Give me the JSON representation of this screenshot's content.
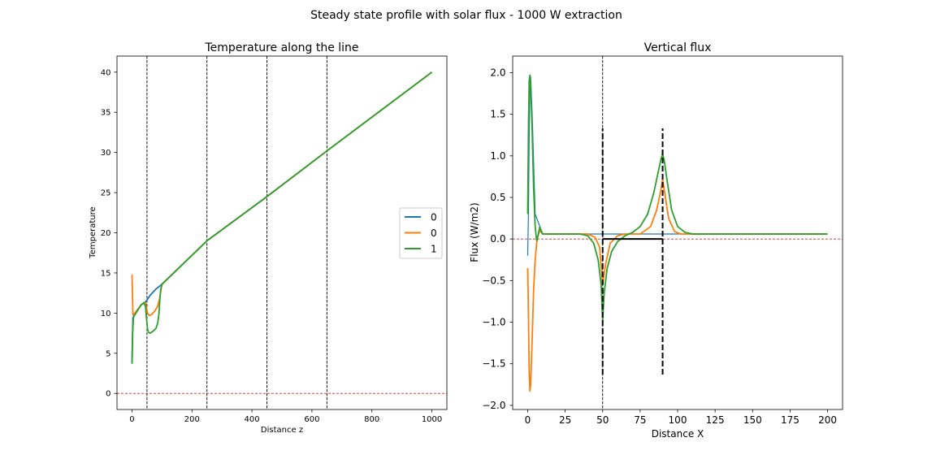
{
  "figure": {
    "suptitle": "Steady state profile with solar flux - 1000 W extraction"
  },
  "chart_data": [
    {
      "type": "line",
      "title": "Temperature along the line",
      "xlabel": "Distance z",
      "ylabel": "Temperature",
      "xlim": [
        -50,
        1050
      ],
      "ylim": [
        -2,
        42
      ],
      "xticks": [
        0,
        200,
        400,
        600,
        800,
        1000
      ],
      "yticks": [
        0,
        5,
        10,
        15,
        20,
        25,
        30,
        35,
        40
      ],
      "vlines": [
        50,
        250,
        450,
        650
      ],
      "hline": 0,
      "legend": {
        "placement": "center-right",
        "entries": [
          "0",
          "0",
          "1"
        ]
      },
      "series": [
        {
          "name": "0",
          "color": "#1f77b4",
          "x": [
            0,
            3,
            10,
            20,
            30,
            40,
            45,
            50,
            60,
            80,
            100,
            250,
            450,
            650,
            1000
          ],
          "y": [
            3.7,
            9.4,
            10.0,
            10.5,
            11.0,
            11.3,
            11.4,
            11.6,
            12.2,
            13.0,
            13.6,
            19.0,
            24.5,
            30.2,
            40.0
          ]
        },
        {
          "name": "0",
          "color": "#ff7f0e",
          "x": [
            0,
            3,
            10,
            20,
            30,
            40,
            45,
            48,
            52,
            58,
            65,
            75,
            85,
            92,
            96,
            100,
            250,
            450,
            650,
            1000
          ],
          "y": [
            14.8,
            9.8,
            10.0,
            10.5,
            11.0,
            11.3,
            11.3,
            10.7,
            10.0,
            9.7,
            9.8,
            10.2,
            10.8,
            11.8,
            12.8,
            13.6,
            19.0,
            24.5,
            30.2,
            40.0
          ]
        },
        {
          "name": "1",
          "color": "#2ca02c",
          "x": [
            0,
            2,
            5,
            10,
            20,
            30,
            40,
            45,
            48,
            52,
            55,
            60,
            65,
            72,
            80,
            86,
            90,
            93,
            96,
            100,
            250,
            450,
            650,
            1000
          ],
          "y": [
            3.7,
            7.5,
            9.5,
            9.8,
            10.4,
            11.0,
            11.3,
            10.8,
            9.5,
            8.0,
            7.6,
            7.5,
            7.6,
            7.8,
            8.1,
            8.8,
            10.0,
            11.8,
            13.0,
            13.6,
            19.0,
            24.5,
            30.2,
            40.0
          ]
        }
      ]
    },
    {
      "type": "line",
      "title": "Vertical flux",
      "xlabel": "Distance X",
      "ylabel": "Flux (W/m2)",
      "xlim": [
        -10,
        210
      ],
      "ylim": [
        -2.05,
        2.2
      ],
      "xticks": [
        0,
        25,
        50,
        75,
        100,
        125,
        150,
        175,
        200
      ],
      "yticks": [
        -2.0,
        -1.5,
        -1.0,
        -0.5,
        0.0,
        0.5,
        1.0,
        1.5,
        2.0
      ],
      "xtick_labels": [
        "0",
        "25",
        "50",
        "75",
        "100",
        "125",
        "150",
        "175",
        "200"
      ],
      "ytick_labels": [
        "−2.0",
        "−1.5",
        "−1.0",
        "−0.5",
        "0.0",
        "0.5",
        "1.0",
        "1.5",
        "2.0"
      ],
      "hline": 0,
      "vline_thin": 50,
      "bracket": {
        "x_start": 50,
        "x_end": 90,
        "y_base": 0,
        "left_range": [
          -1.63,
          1.33
        ],
        "right_range": [
          -1.63,
          1.33
        ]
      },
      "series": [
        {
          "name": "",
          "color": "#1f77b4",
          "x": [
            0,
            0.5,
            1,
            1.5,
            2,
            3,
            5,
            10,
            15,
            50,
            90,
            200
          ],
          "y": [
            -0.2,
            0.3,
            1.2,
            1.8,
            1.95,
            1.5,
            0.3,
            0.06,
            0.06,
            0.06,
            0.06,
            0.06
          ]
        },
        {
          "name": "",
          "color": "#ff7f0e",
          "x": [
            0,
            0.5,
            1,
            1.5,
            2,
            3,
            4,
            5,
            6,
            7,
            8,
            9,
            10,
            12,
            15,
            25,
            40,
            45,
            48,
            50,
            52,
            55,
            60,
            65,
            75,
            82,
            86,
            89,
            90,
            91,
            94,
            98,
            102,
            110,
            200
          ],
          "y": [
            -0.35,
            -0.9,
            -1.6,
            -1.83,
            -1.75,
            -1.2,
            -0.6,
            -0.25,
            -0.05,
            0.05,
            0.1,
            0.08,
            0.06,
            0.06,
            0.06,
            0.06,
            0.06,
            0.02,
            -0.1,
            -0.55,
            -0.3,
            -0.05,
            0.04,
            0.06,
            0.06,
            0.15,
            0.35,
            0.6,
            0.72,
            0.6,
            0.25,
            0.09,
            0.06,
            0.06,
            0.06
          ]
        },
        {
          "name": "",
          "color": "#2ca02c",
          "x": [
            0,
            0.5,
            1,
            1.5,
            2,
            3,
            4,
            5,
            6,
            7,
            8,
            9,
            10,
            12,
            15,
            25,
            35,
            40,
            44,
            47,
            49,
            50,
            51,
            53,
            56,
            60,
            65,
            70,
            75,
            80,
            84,
            87,
            89,
            90,
            91,
            93,
            96,
            100,
            105,
            110,
            200
          ],
          "y": [
            0.3,
            1.3,
            1.9,
            1.97,
            1.85,
            1.3,
            0.6,
            0.15,
            -0.02,
            0.05,
            0.14,
            0.1,
            0.06,
            0.06,
            0.06,
            0.06,
            0.06,
            0.04,
            -0.05,
            -0.25,
            -0.55,
            -0.98,
            -0.65,
            -0.35,
            -0.15,
            -0.03,
            0.04,
            0.08,
            0.15,
            0.3,
            0.55,
            0.8,
            0.97,
            1.02,
            0.95,
            0.7,
            0.35,
            0.15,
            0.08,
            0.06,
            0.06
          ]
        }
      ]
    }
  ]
}
